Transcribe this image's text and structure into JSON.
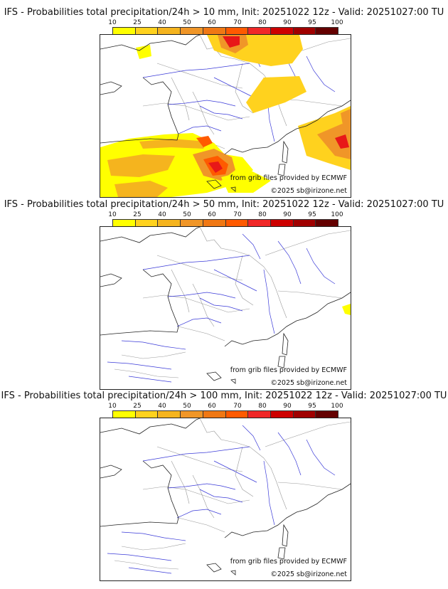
{
  "colorbar": {
    "ticks": [
      "10",
      "25",
      "40",
      "50",
      "60",
      "70",
      "80",
      "90",
      "95",
      "100"
    ],
    "colors": [
      "#ffff00",
      "#ffd21e",
      "#f5b41e",
      "#f09628",
      "#f07814",
      "#ff5a00",
      "#f02828",
      "#cd0000",
      "#a00000",
      "#640000"
    ]
  },
  "panels": [
    {
      "title": "IFS - Probabilities total precipitation/24h > 10 mm, Init: 20251022 12z - Valid: 20251027:00 TU"
    },
    {
      "title": "IFS - Probabilities total precipitation/24h > 50 mm, Init: 20251022 12z - Valid: 20251027:00 TU"
    },
    {
      "title": "IFS - Probabilities total precipitation/24h > 100 mm, Init: 20251022 12z - Valid: 20251027:00 TU"
    }
  ],
  "credits": {
    "source": "from grib files provided by ECMWF",
    "copyright": "©2025 sb@irizone.net"
  },
  "map_colors": {
    "coast": "#222222",
    "rivers": "#3a3ad8",
    "borders": "#9a9a9a",
    "land": "#ffffff"
  }
}
